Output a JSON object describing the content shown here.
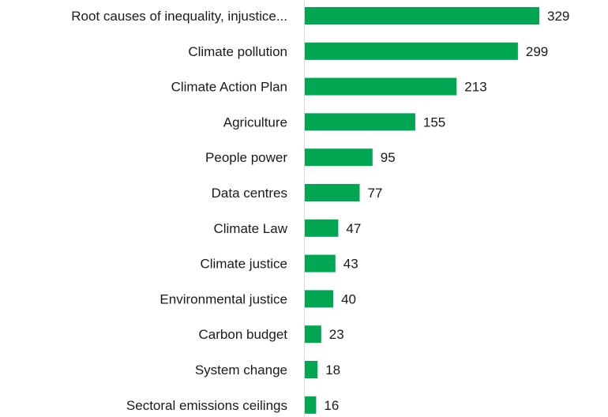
{
  "chart_data": {
    "type": "bar",
    "orientation": "horizontal",
    "categories": [
      "Root causes of inequality, injustice...",
      "Climate pollution",
      "Climate Action Plan",
      "Agriculture",
      "People power",
      "Data centres",
      "Climate Law",
      "Climate justice",
      "Environmental justice",
      "Carbon budget",
      "System change",
      "Sectoral emissions ceilings"
    ],
    "values": [
      329,
      299,
      213,
      155,
      95,
      77,
      47,
      43,
      40,
      23,
      18,
      16
    ],
    "title": "",
    "xlabel": "",
    "ylabel": "",
    "xlim": [
      0,
      329
    ],
    "grid": false,
    "legend": "none",
    "data_labels": true,
    "colors": {
      "bar": "#00a651",
      "axis": "#d9d9d9",
      "text": "#1a1a1a"
    }
  }
}
